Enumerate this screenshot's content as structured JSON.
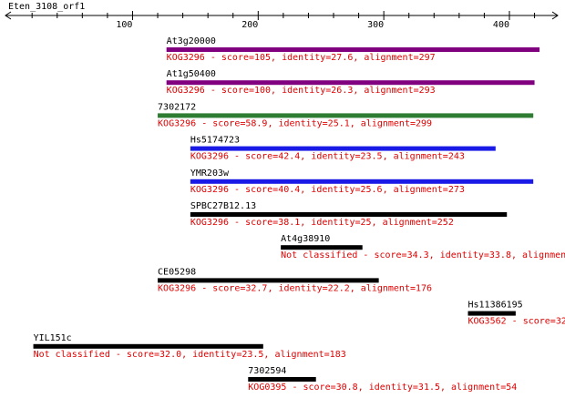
{
  "chart_data": {
    "type": "alignment",
    "title": "Eten_3108_orf1",
    "xlim": [
      1,
      437
    ],
    "xticks": [
      100,
      200,
      300,
      400
    ],
    "xminorticks": [
      20,
      40,
      60,
      80,
      120,
      140,
      160,
      180,
      220,
      240,
      260,
      280,
      320,
      340,
      360,
      380,
      420
    ],
    "hits": [
      {
        "name": "At3g20000",
        "description": "KOG3296 - score=105, identity=27.6, alignment=297",
        "start": 127,
        "end": 424,
        "color": "#800080"
      },
      {
        "name": "At1g50400",
        "description": "KOG3296 - score=100, identity=26.3, alignment=293",
        "start": 127,
        "end": 420,
        "color": "#800080"
      },
      {
        "name": "7302172",
        "description": "KOG3296 - score=58.9, identity=25.1, alignment=299",
        "start": 120,
        "end": 419,
        "color": "#2e7d32"
      },
      {
        "name": "Hs5174723",
        "description": "KOG3296 - score=42.4, identity=23.5, alignment=243",
        "start": 146,
        "end": 389,
        "color": "#1a1ae6"
      },
      {
        "name": "YMR203w",
        "description": "KOG3296 - score=40.4, identity=25.6, alignment=273",
        "start": 146,
        "end": 419,
        "color": "#1a1ae6"
      },
      {
        "name": "SPBC27B12.13",
        "description": "KOG3296 - score=38.1, identity=25, alignment=252",
        "start": 146,
        "end": 398,
        "color": "#000000"
      },
      {
        "name": "At4g38910",
        "description": "Not classified - score=34.3, identity=33.8, alignmen",
        "start": 218,
        "end": 283,
        "color": "#000000"
      },
      {
        "name": "CE05298",
        "description": "KOG3296 - score=32.7, identity=22.2, alignment=176",
        "start": 120,
        "end": 296,
        "color": "#000000"
      },
      {
        "name": "Hs11386195",
        "description": "KOG3562 - score=32",
        "start": 367,
        "end": 405,
        "color": "#000000"
      },
      {
        "name": "YIL151c",
        "description": "Not classified - score=32.0, identity=23.5, alignment=183",
        "start": 21,
        "end": 204,
        "color": "#000000"
      },
      {
        "name": "7302594",
        "description": "KOG0395 - score=30.8, identity=31.5, alignment=54",
        "start": 192,
        "end": 246,
        "color": "#000000"
      }
    ]
  }
}
